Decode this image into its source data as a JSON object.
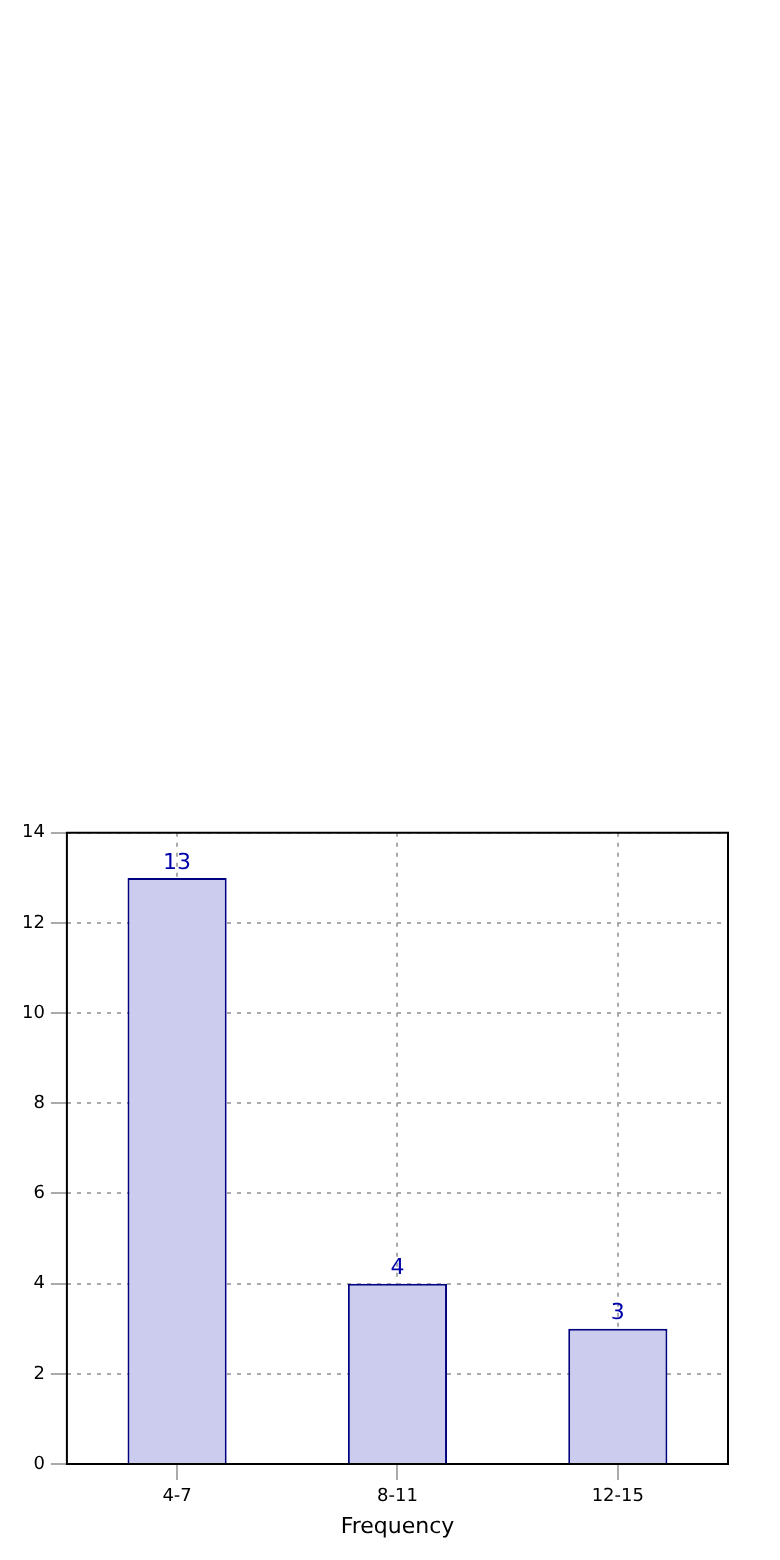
{
  "chart_data": {
    "type": "bar",
    "xlabel": "Frequency",
    "categories": [
      "4-7",
      "8-11",
      "12-15"
    ],
    "series": [
      {
        "color": "#ccccee",
        "values": [
          13,
          4,
          3
        ]
      }
    ],
    "ylim": [
      0,
      14
    ],
    "yticks": [
      0,
      2,
      4,
      6,
      8,
      10,
      12,
      14
    ],
    "grid": true,
    "data_labels": true
  }
}
